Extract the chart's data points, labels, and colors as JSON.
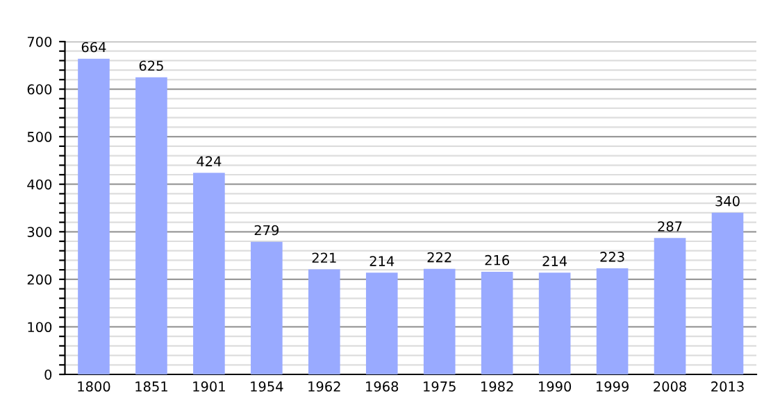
{
  "chart_data": {
    "type": "bar",
    "categories": [
      "1800",
      "1851",
      "1901",
      "1954",
      "1962",
      "1968",
      "1975",
      "1982",
      "1990",
      "1999",
      "2008",
      "2013"
    ],
    "values": [
      664,
      625,
      424,
      279,
      221,
      214,
      222,
      216,
      214,
      223,
      287,
      340
    ],
    "color": "#99aaff",
    "data_labels": true,
    "grid": "y",
    "ylim": [
      0,
      700
    ],
    "yticks": [
      0,
      {
        "value": 20,
        "label": null
      },
      {
        "value": 40,
        "label": null
      },
      {
        "value": 60,
        "label": null
      },
      {
        "value": 80,
        "label": null
      },
      100,
      {
        "value": 120,
        "label": null
      },
      {
        "value": 140,
        "label": null
      },
      {
        "value": 160,
        "label": null
      },
      {
        "value": 180,
        "label": null
      },
      200,
      {
        "value": 220,
        "label": null
      },
      {
        "value": 240,
        "label": null
      },
      {
        "value": 260,
        "label": null
      },
      {
        "value": 280,
        "label": null
      },
      300,
      {
        "value": 320,
        "label": null
      },
      {
        "value": 340,
        "label": null
      },
      {
        "value": 360,
        "label": null
      },
      {
        "value": 380,
        "label": null
      },
      400,
      {
        "value": 420,
        "label": null
      },
      {
        "value": 440,
        "label": null
      },
      {
        "value": 460,
        "label": null
      },
      {
        "value": 480,
        "label": null
      },
      500,
      {
        "value": 520,
        "label": null
      },
      {
        "value": 540,
        "label": null
      },
      {
        "value": 560,
        "label": null
      },
      {
        "value": 580,
        "label": null
      },
      600,
      {
        "value": 620,
        "label": null
      },
      {
        "value": 640,
        "label": null
      },
      {
        "value": 660,
        "label": null
      },
      {
        "value": 680,
        "label": null
      },
      700
    ]
  }
}
